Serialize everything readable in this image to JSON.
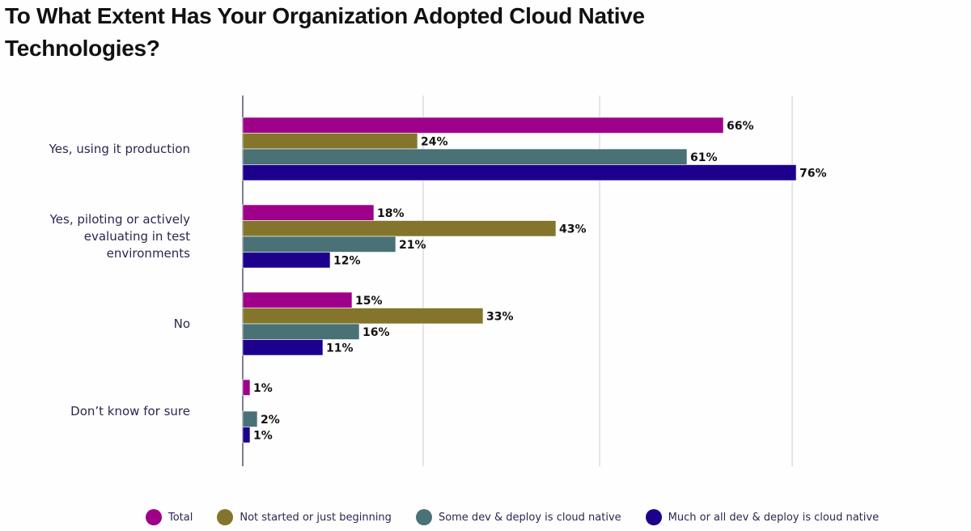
{
  "chart_data": {
    "type": "bar",
    "orientation": "horizontal",
    "title": "To What Extent Has Your Organization Adopted Cloud Native Technologies?",
    "categories": [
      "Yes, using it production",
      "Yes, piloting or actively evaluating in test environments",
      "No",
      "Don’t know for sure"
    ],
    "category_lines": [
      [
        "Yes, using it production"
      ],
      [
        "Yes, piloting or actively",
        "evaluating in test",
        "environments"
      ],
      [
        "No"
      ],
      [
        "Don’t know for sure"
      ]
    ],
    "series": [
      {
        "name": "Total",
        "color": "#9e0089",
        "values": [
          66,
          18,
          15,
          1
        ]
      },
      {
        "name": "Not started or just beginning",
        "color": "#83752b",
        "values": [
          24,
          43,
          33,
          0
        ]
      },
      {
        "name": "Some dev & deploy is cloud native",
        "color": "#497176",
        "values": [
          61,
          21,
          16,
          2
        ]
      },
      {
        "name": "Much or all dev & deploy is cloud native",
        "color": "#1d008c",
        "values": [
          76,
          12,
          11,
          1
        ]
      }
    ],
    "value_format": "{v}%",
    "xlabel": "",
    "ylabel": "",
    "grid": true,
    "legend_position": "bottom"
  }
}
